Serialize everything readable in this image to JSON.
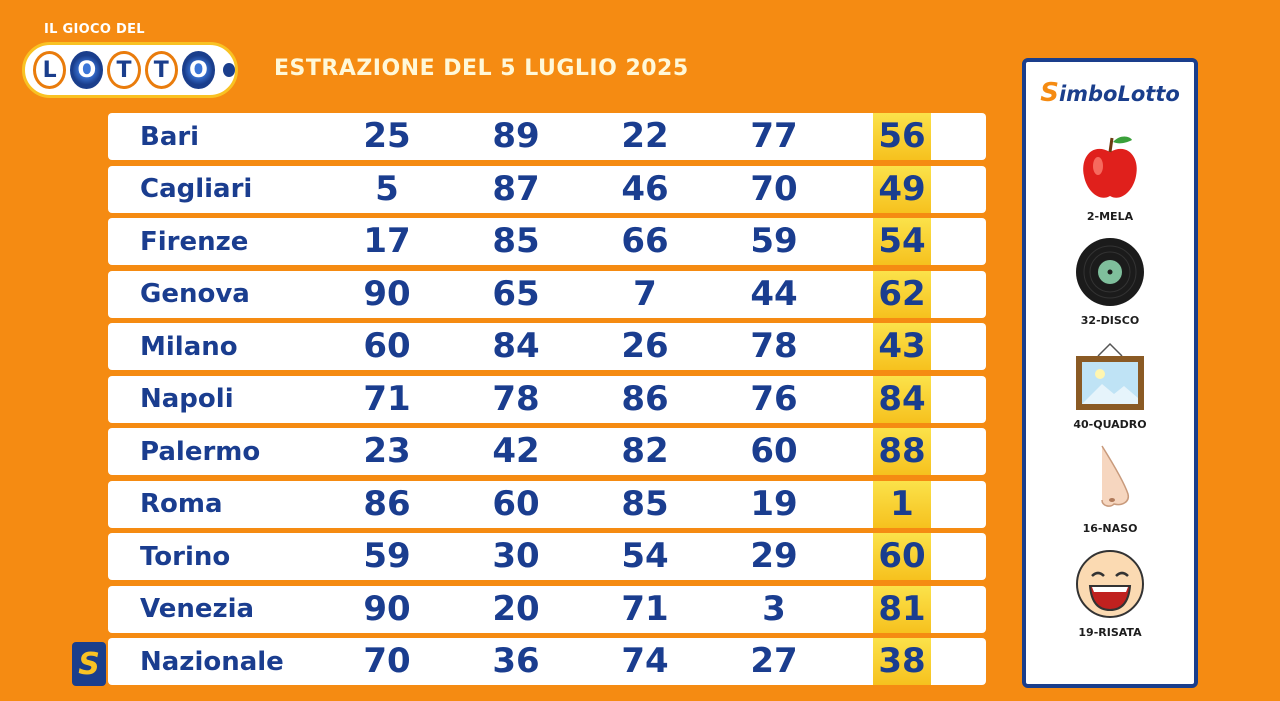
{
  "logo": {
    "top_text": "IL GIOCO DEL",
    "letters": [
      "L",
      "O",
      "T",
      "T",
      "O"
    ]
  },
  "title": "ESTRAZIONE DEL 5 LUGLIO 2025",
  "draws": [
    {
      "city": "Bari",
      "numbers": [
        "25",
        "89",
        "22",
        "77",
        "56"
      ]
    },
    {
      "city": "Cagliari",
      "numbers": [
        "5",
        "87",
        "46",
        "70",
        "49"
      ]
    },
    {
      "city": "Firenze",
      "numbers": [
        "17",
        "85",
        "66",
        "59",
        "54"
      ]
    },
    {
      "city": "Genova",
      "numbers": [
        "90",
        "65",
        "7",
        "44",
        "62"
      ]
    },
    {
      "city": "Milano",
      "numbers": [
        "60",
        "84",
        "26",
        "78",
        "43"
      ]
    },
    {
      "city": "Napoli",
      "numbers": [
        "71",
        "78",
        "86",
        "76",
        "84"
      ]
    },
    {
      "city": "Palermo",
      "numbers": [
        "23",
        "42",
        "82",
        "60",
        "88"
      ]
    },
    {
      "city": "Roma",
      "numbers": [
        "86",
        "60",
        "85",
        "19",
        "1"
      ]
    },
    {
      "city": "Torino",
      "numbers": [
        "59",
        "30",
        "54",
        "29",
        "60"
      ]
    },
    {
      "city": "Venezia",
      "numbers": [
        "90",
        "20",
        "71",
        "3",
        "81"
      ]
    },
    {
      "city": "Nazionale",
      "numbers": [
        "70",
        "36",
        "74",
        "27",
        "38"
      ]
    }
  ],
  "national_badge": "S",
  "simbolotto": {
    "title_s": "S",
    "title_rest": "imboLotto",
    "symbols": [
      {
        "label": "2-MELA",
        "icon": "apple-icon"
      },
      {
        "label": "32-DISCO",
        "icon": "vinyl-record-icon"
      },
      {
        "label": "40-QUADRO",
        "icon": "framed-picture-icon"
      },
      {
        "label": "16-NASO",
        "icon": "nose-icon"
      },
      {
        "label": "19-RISATA",
        "icon": "laughing-face-icon"
      }
    ]
  },
  "colors": {
    "background": "#f58b12",
    "text_blue": "#1a3d8f",
    "highlight_yellow": "#f6c11e"
  }
}
